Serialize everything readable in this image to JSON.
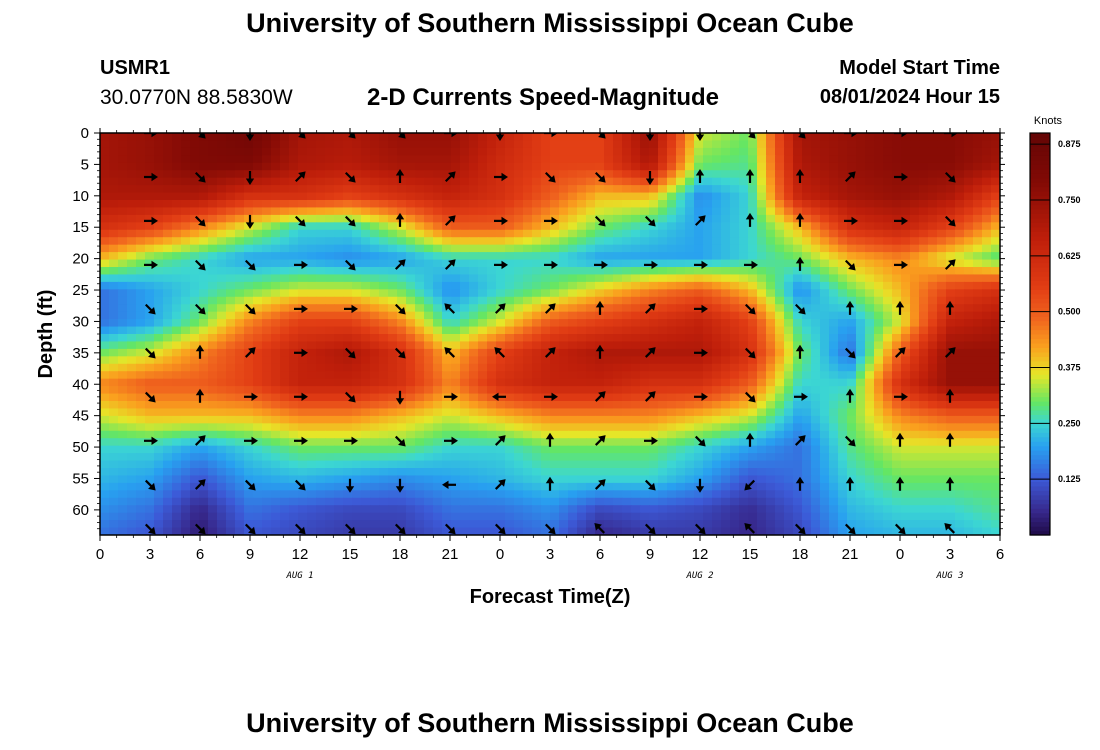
{
  "header": {
    "title": "University of Southern Mississippi Ocean Cube",
    "station_id": "USMR1",
    "station_coords": "30.0770N  88.5830W",
    "plot_title": "2-D Currents Speed-Magnitude",
    "model_label": "Model Start Time",
    "model_time": "08/01/2024 Hour 15"
  },
  "footer": {
    "title": "University of Southern Mississippi Ocean Cube"
  },
  "chart_data": {
    "type": "heatmap",
    "title": "2-D Currents Speed-Magnitude",
    "xlabel": "Forecast Time(Z)",
    "ylabel": "Depth (ft)",
    "x_tick_labels": [
      "0",
      "3",
      "6",
      "9",
      "12",
      "15",
      "18",
      "21",
      "0",
      "3",
      "6",
      "9",
      "12",
      "15",
      "18",
      "21",
      "0",
      "3",
      "6"
    ],
    "x_range_hours": [
      0,
      54
    ],
    "date_labels": [
      {
        "label": "AUG 1",
        "hour": 12
      },
      {
        "label": "AUG 2",
        "hour": 36
      },
      {
        "label": "AUG 3",
        "hour": 51
      }
    ],
    "y_tick_labels": [
      "0",
      "5",
      "10",
      "15",
      "20",
      "25",
      "30",
      "35",
      "40",
      "45",
      "50",
      "55",
      "60"
    ],
    "y_range_ft": [
      0,
      64
    ],
    "colorbar": {
      "unit": "Knots",
      "min": 0.0,
      "max": 0.9,
      "ticks": [
        "0.875",
        "0.750",
        "0.625",
        "0.500",
        "0.375",
        "0.250",
        "0.125"
      ],
      "tick_values": [
        0.875,
        0.75,
        0.625,
        0.5,
        0.375,
        0.25,
        0.125
      ]
    },
    "speed_knots": {
      "time_hours": [
        0,
        3,
        6,
        9,
        12,
        15,
        18,
        21,
        24,
        27,
        30,
        33,
        36,
        39,
        42,
        45,
        48,
        51,
        54
      ],
      "depth_ft": [
        0,
        5,
        10,
        15,
        20,
        25,
        30,
        35,
        40,
        45,
        50,
        55,
        60,
        64
      ],
      "values": [
        [
          0.72,
          0.75,
          0.8,
          0.85,
          0.72,
          0.7,
          0.75,
          0.75,
          0.65,
          0.55,
          0.55,
          0.75,
          0.35,
          0.3,
          0.72,
          0.75,
          0.78,
          0.78,
          0.75
        ],
        [
          0.72,
          0.75,
          0.8,
          0.8,
          0.7,
          0.68,
          0.72,
          0.72,
          0.62,
          0.55,
          0.55,
          0.7,
          0.3,
          0.28,
          0.7,
          0.75,
          0.78,
          0.78,
          0.72
        ],
        [
          0.7,
          0.7,
          0.7,
          0.6,
          0.6,
          0.55,
          0.6,
          0.65,
          0.6,
          0.5,
          0.4,
          0.4,
          0.18,
          0.25,
          0.65,
          0.72,
          0.75,
          0.7,
          0.55
        ],
        [
          0.6,
          0.55,
          0.45,
          0.35,
          0.25,
          0.25,
          0.35,
          0.5,
          0.5,
          0.4,
          0.3,
          0.25,
          0.2,
          0.25,
          0.4,
          0.6,
          0.65,
          0.55,
          0.4
        ],
        [
          0.4,
          0.3,
          0.25,
          0.2,
          0.2,
          0.18,
          0.2,
          0.25,
          0.25,
          0.25,
          0.2,
          0.2,
          0.2,
          0.25,
          0.3,
          0.4,
          0.45,
          0.35,
          0.28
        ],
        [
          0.15,
          0.2,
          0.25,
          0.3,
          0.35,
          0.35,
          0.3,
          0.18,
          0.25,
          0.3,
          0.38,
          0.45,
          0.5,
          0.4,
          0.18,
          0.3,
          0.4,
          0.55,
          0.6
        ],
        [
          0.15,
          0.2,
          0.3,
          0.45,
          0.55,
          0.55,
          0.45,
          0.25,
          0.35,
          0.5,
          0.55,
          0.6,
          0.65,
          0.55,
          0.25,
          0.2,
          0.35,
          0.65,
          0.7
        ],
        [
          0.3,
          0.35,
          0.45,
          0.55,
          0.65,
          0.7,
          0.6,
          0.4,
          0.55,
          0.65,
          0.7,
          0.7,
          0.7,
          0.6,
          0.3,
          0.15,
          0.5,
          0.75,
          0.75
        ],
        [
          0.45,
          0.5,
          0.5,
          0.55,
          0.65,
          0.65,
          0.6,
          0.45,
          0.6,
          0.65,
          0.65,
          0.6,
          0.6,
          0.5,
          0.25,
          0.25,
          0.6,
          0.75,
          0.75
        ],
        [
          0.35,
          0.4,
          0.4,
          0.4,
          0.45,
          0.45,
          0.4,
          0.35,
          0.4,
          0.45,
          0.45,
          0.45,
          0.4,
          0.35,
          0.2,
          0.3,
          0.45,
          0.5,
          0.5
        ],
        [
          0.25,
          0.25,
          0.2,
          0.25,
          0.3,
          0.3,
          0.3,
          0.25,
          0.25,
          0.3,
          0.3,
          0.3,
          0.25,
          0.2,
          0.15,
          0.28,
          0.35,
          0.35,
          0.35
        ],
        [
          0.22,
          0.2,
          0.12,
          0.2,
          0.22,
          0.2,
          0.18,
          0.2,
          0.22,
          0.25,
          0.25,
          0.25,
          0.2,
          0.12,
          0.15,
          0.25,
          0.3,
          0.3,
          0.3
        ],
        [
          0.18,
          0.15,
          0.05,
          0.15,
          0.12,
          0.1,
          0.1,
          0.15,
          0.15,
          0.18,
          0.1,
          0.12,
          0.1,
          0.06,
          0.12,
          0.22,
          0.25,
          0.25,
          0.28
        ],
        [
          0.15,
          0.12,
          0.03,
          0.12,
          0.1,
          0.08,
          0.08,
          0.12,
          0.12,
          0.15,
          0.05,
          0.08,
          0.08,
          0.05,
          0.1,
          0.2,
          0.22,
          0.22,
          0.25
        ]
      ]
    },
    "vectors": {
      "time_hours": [
        3,
        6,
        9,
        12,
        15,
        18,
        21,
        24,
        27,
        30,
        33,
        36,
        39,
        42,
        45,
        48,
        51
      ],
      "depth_ft": [
        0,
        7,
        14,
        21,
        28,
        35,
        42,
        49,
        56,
        63
      ],
      "directions_deg": [
        [
          90,
          135,
          180,
          135,
          135,
          135,
          90,
          180,
          90,
          135,
          180,
          180,
          135,
          135,
          90,
          90,
          90
        ],
        [
          90,
          135,
          180,
          45,
          135,
          0,
          45,
          90,
          135,
          135,
          180,
          0,
          0,
          0,
          45,
          90,
          135
        ],
        [
          90,
          135,
          180,
          135,
          135,
          0,
          45,
          90,
          90,
          135,
          135,
          45,
          0,
          0,
          90,
          90,
          135
        ],
        [
          90,
          135,
          135,
          90,
          135,
          45,
          45,
          90,
          90,
          90,
          90,
          90,
          90,
          0,
          135,
          90,
          45
        ],
        [
          135,
          135,
          135,
          90,
          90,
          135,
          315,
          45,
          45,
          0,
          45,
          90,
          135,
          135,
          0,
          0,
          0
        ],
        [
          135,
          0,
          45,
          90,
          135,
          135,
          315,
          315,
          45,
          0,
          45,
          90,
          135,
          0,
          135,
          45,
          45
        ],
        [
          135,
          0,
          90,
          90,
          135,
          180,
          90,
          270,
          90,
          45,
          45,
          90,
          135,
          90,
          0,
          90,
          0
        ],
        [
          90,
          45,
          90,
          90,
          90,
          135,
          90,
          45,
          0,
          45,
          90,
          135,
          0,
          45,
          135,
          0,
          0
        ],
        [
          135,
          45,
          135,
          135,
          180,
          180,
          270,
          45,
          0,
          45,
          135,
          180,
          225,
          0,
          0,
          0,
          0
        ],
        [
          135,
          135,
          135,
          135,
          135,
          135,
          135,
          135,
          135,
          315,
          135,
          135,
          315,
          135,
          135,
          135,
          315
        ]
      ]
    }
  }
}
